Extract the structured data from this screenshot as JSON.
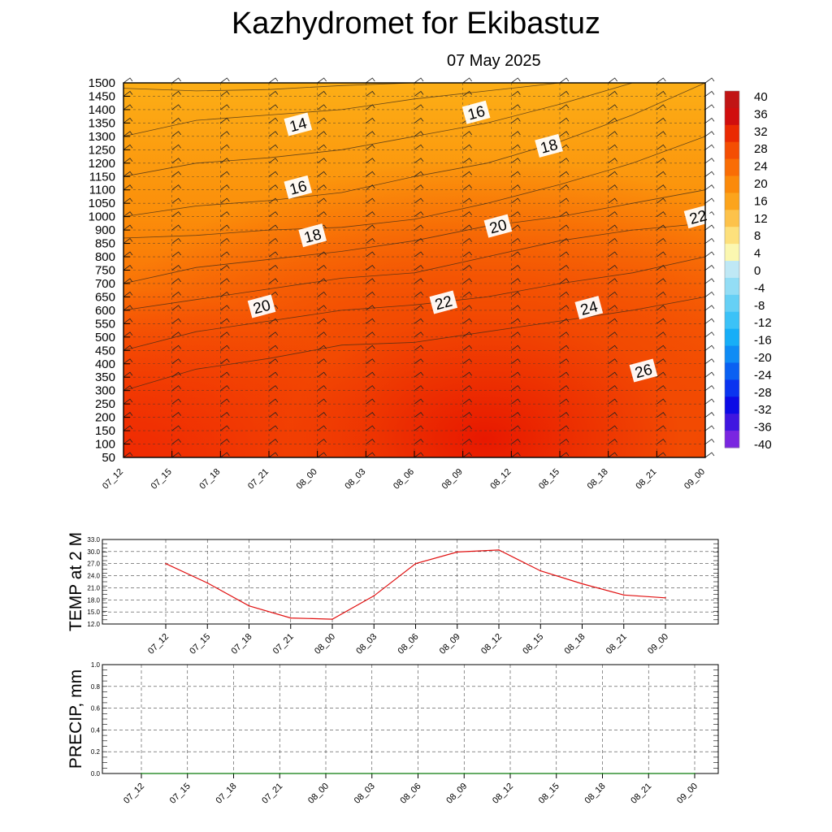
{
  "header": {
    "title": "Kazhydromet  for Ekibastuz",
    "date": "07 May 2025"
  },
  "chart_data": [
    {
      "type": "heatmap",
      "title": "Kazhydromet  for Ekibastuz",
      "subtitle": "07 May 2025",
      "x_ticks": [
        "07_12",
        "07_15",
        "07_18",
        "07_21",
        "08_00",
        "08_03",
        "08_06",
        "08_09",
        "08_12",
        "08_15",
        "08_18",
        "08_21",
        "09_00"
      ],
      "y_ticks": [
        50,
        100,
        150,
        200,
        250,
        300,
        350,
        400,
        450,
        500,
        550,
        600,
        650,
        700,
        750,
        800,
        850,
        900,
        1000,
        1050,
        1100,
        1150,
        1200,
        1250,
        1300,
        1350,
        1400,
        1450,
        1500
      ],
      "colorbar": {
        "labels": [
          "40",
          "36",
          "32",
          "28",
          "24",
          "20",
          "16",
          "12",
          "8",
          "4",
          "0",
          "-4",
          "-8",
          "-12",
          "-16",
          "-20",
          "-24",
          "-28",
          "-32",
          "-36",
          "-40"
        ],
        "range": [
          -40,
          40
        ],
        "colors": [
          "#7a26e0",
          "#3f16e0",
          "#0c0ae6",
          "#0a34f0",
          "#0a60f2",
          "#0f8cf5",
          "#17aef7",
          "#3cc2f7",
          "#66d0f5",
          "#93ddf5",
          "#bfe8f5",
          "#fbf7b0",
          "#fde07c",
          "#fdc24a",
          "#fca41c",
          "#fb8a0a",
          "#f96d05",
          "#f44e03",
          "#ea2a02",
          "#d00e0e",
          "#c11515"
        ]
      },
      "contour_labels": [
        {
          "text": "14",
          "x": 4.8,
          "y": 1345
        },
        {
          "text": "16",
          "x": 9.7,
          "y": 1390
        },
        {
          "text": "18",
          "x": 11.7,
          "y": 1265
        },
        {
          "text": "16",
          "x": 4.8,
          "y": 1110
        },
        {
          "text": "20",
          "x": 10.3,
          "y": 930
        },
        {
          "text": "22",
          "x": 15.8,
          "y": 1000
        },
        {
          "text": "18",
          "x": 5.2,
          "y": 880
        },
        {
          "text": "20",
          "x": 3.8,
          "y": 615
        },
        {
          "text": "22",
          "x": 8.8,
          "y": 630
        },
        {
          "text": "24",
          "x": 12.8,
          "y": 610
        },
        {
          "text": "26",
          "x": 14.3,
          "y": 375
        }
      ]
    },
    {
      "type": "line",
      "ylabel": "TEMP at 2 M",
      "x": [
        "07_12",
        "07_15",
        "07_18",
        "07_21",
        "08_00",
        "08_03",
        "08_06",
        "08_09",
        "08_12",
        "08_15",
        "08_18",
        "08_21",
        "09_00"
      ],
      "y_ticks": [
        "12.0",
        "15.0",
        "18.0",
        "21.0",
        "24.0",
        "27.0",
        "30.0",
        "33.0"
      ],
      "ylim": [
        12,
        33
      ],
      "values": [
        27.0,
        22.2,
        16.5,
        13.5,
        13.2,
        19.0,
        27.0,
        29.9,
        30.4,
        25.2,
        22.0,
        19.2,
        18.5
      ],
      "line_color": "#e01010"
    },
    {
      "type": "line",
      "ylabel": "PRECIP, mm",
      "x": [
        "07_12",
        "07_15",
        "07_18",
        "07_21",
        "08_00",
        "08_03",
        "08_06",
        "08_09",
        "08_12",
        "08_15",
        "08_18",
        "08_21",
        "09_00"
      ],
      "y_ticks": [
        "0.0",
        "0.2",
        "0.4",
        "0.6",
        "0.8",
        "1.0"
      ],
      "ylim": [
        0,
        1
      ],
      "values": [
        0,
        0,
        0,
        0,
        0,
        0,
        0,
        0,
        0,
        0,
        0,
        0,
        0
      ],
      "line_color": "#0a7a0a"
    }
  ]
}
